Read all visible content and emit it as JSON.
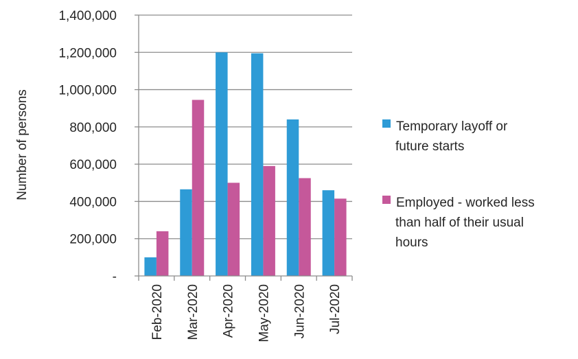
{
  "chart_data": {
    "type": "bar",
    "title": "",
    "xlabel": "",
    "ylabel": "Number of persons",
    "categories": [
      "Feb-2020",
      "Mar-2020",
      "Apr-2020",
      "May-2020",
      "Jun-2020",
      "Jul-2020"
    ],
    "series": [
      {
        "name": "Temporary layoff or future starts",
        "name_lines": [
          "Temporary layoff or",
          "future starts"
        ],
        "color": "#2e9bd6",
        "values": [
          100000,
          465000,
          1200000,
          1195000,
          840000,
          460000
        ]
      },
      {
        "name": "Employed - worked less than half of their usual hours",
        "name_lines": [
          "Employed - worked less",
          "than half of their usual",
          "hours"
        ],
        "color": "#c5589a",
        "values": [
          240000,
          945000,
          500000,
          590000,
          525000,
          415000
        ]
      }
    ],
    "ylim": [
      0,
      1400000
    ],
    "yticks": [
      0,
      200000,
      400000,
      600000,
      800000,
      1000000,
      1200000,
      1400000
    ],
    "ytick_labels": [
      "-",
      "200,000",
      "400,000",
      "600,000",
      "800,000",
      "1,000,000",
      "1,200,000",
      "1,400,000"
    ],
    "grid": true,
    "legend_position": "right"
  }
}
